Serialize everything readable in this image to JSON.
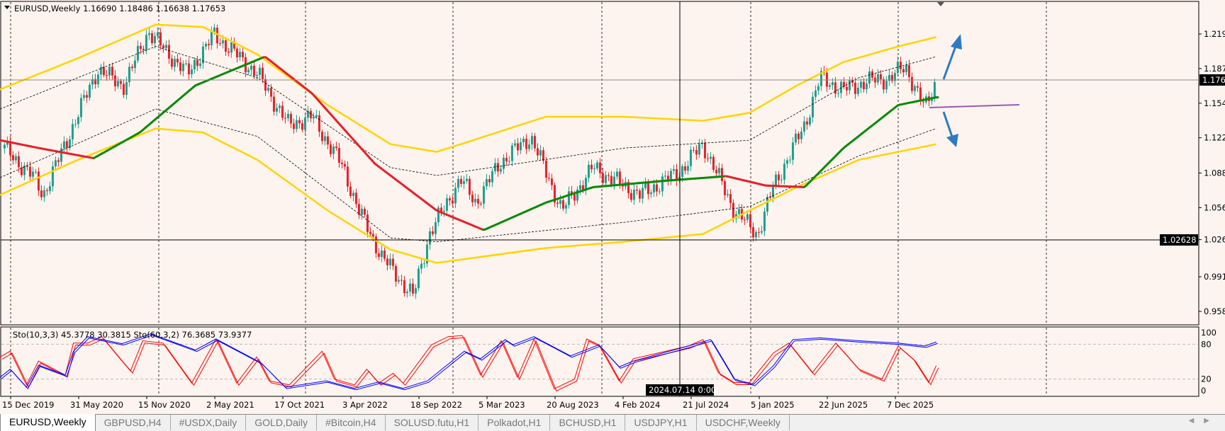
{
  "window": {
    "header": "EURUSD,Weekly  1.16690 1.18486 1.16638 1.17653",
    "symbol": "EURUSD",
    "timeframe": "Weekly"
  },
  "colors": {
    "background": "#fdf4ef",
    "bull_candle": "#1e9e8c",
    "bear_candle": "#e8202a",
    "ma_rising": "#0a8a0a",
    "ma_falling": "#e8202a",
    "outer_band": "#ffd400",
    "inner_band": "#000000",
    "stoch_fast": "#ff0000",
    "stoch_slow": "#0000ff",
    "arrow": "#2e7bc4",
    "level_line": "#9b59b6"
  },
  "price_axis": {
    "ticks": [
      "1.21950",
      "1.18700",
      "1.15450",
      "1.12200",
      "1.08885",
      "1.05635",
      "1.02628",
      "0.99135",
      "0.95885"
    ],
    "current_price": "1.17653",
    "crosshair_price": "1.02628"
  },
  "stoch_panel": {
    "label": "Sto(10,3,3) 45.3778 30.3815  Sto(60,3,2) 76.3685 73.9377",
    "ticks": [
      "100",
      "80",
      "20",
      "0"
    ]
  },
  "time_axis": {
    "ticks": [
      "15 Dec 2019",
      "31 May 2020",
      "15 Nov 2020",
      "2 May 2021",
      "17 Oct 2021",
      "3 Apr 2022",
      "18 Sep 2022",
      "5 Mar 2023",
      "20 Aug 2023",
      "4 Feb 2024",
      "21 Jul 2024",
      "5 Jan 2025",
      "22 Jun 2025",
      "7 Dec 2025"
    ],
    "crosshair_time": "2024.07.14 0:00"
  },
  "tabs": [
    {
      "label": "EURUSD,Weekly",
      "active": true
    },
    {
      "label": "GBPUSD,H4"
    },
    {
      "label": "#USDX,Daily"
    },
    {
      "label": "GOLD,Daily"
    },
    {
      "label": "#Bitcoin,H4"
    },
    {
      "label": "SOLUSD.futu,H1"
    },
    {
      "label": "Polkadot,H1"
    },
    {
      "label": "BCHUSD,H1"
    },
    {
      "label": "USDJPY,H1"
    },
    {
      "label": "USDCHF,Weekly"
    }
  ],
  "chart_data": {
    "type": "candlestick",
    "ylim": [
      0.95885,
      1.2195
    ],
    "price_path": [
      [
        "2019-11-30",
        1.112
      ],
      [
        "2020-02-14",
        1.083
      ],
      [
        "2020-03-04",
        1.068
      ],
      [
        "2020-05-10",
        1.127
      ],
      [
        "2020-07-16",
        1.186
      ],
      [
        "2020-09-21",
        1.171
      ],
      [
        "2020-11-18",
        1.222
      ],
      [
        "2021-02-23",
        1.182
      ],
      [
        "2021-05-01",
        1.219
      ],
      [
        "2021-08-15",
        1.182
      ],
      [
        "2021-10-31",
        1.134
      ],
      [
        "2021-12-28",
        1.142
      ],
      [
        "2022-03-15",
        1.094
      ],
      [
        "2022-04-22",
        1.054
      ],
      [
        "2022-06-19",
        1.01
      ],
      [
        "2022-09-04",
        0.973
      ],
      [
        "2022-10-13",
        1.031
      ],
      [
        "2022-12-29",
        1.083
      ],
      [
        "2023-02-06",
        1.061
      ],
      [
        "2023-04-05",
        1.098
      ],
      [
        "2023-06-21",
        1.123
      ],
      [
        "2023-09-06",
        1.054
      ],
      [
        "2023-11-22",
        1.094
      ],
      [
        "2024-03-17",
        1.068
      ],
      [
        "2024-06-22",
        1.09
      ],
      [
        "2024-08-19",
        1.116
      ],
      [
        "2024-11-04",
        1.054
      ],
      [
        "2025-01-01",
        1.031
      ],
      [
        "2025-02-09",
        1.076
      ],
      [
        "2025-04-27",
        1.134
      ],
      [
        "2025-06-04",
        1.178
      ],
      [
        "2025-08-01",
        1.167
      ],
      [
        "2025-09-28",
        1.175
      ],
      [
        "2025-11-24",
        1.178
      ],
      [
        "2026-01-01",
        1.189
      ],
      [
        "2026-02-18",
        1.149
      ],
      [
        "2026-03-18",
        1.1765
      ]
    ],
    "moving_average": [
      [
        "2019-11-19",
        1.1197
      ],
      [
        "2020-02-23",
        1.1123
      ],
      [
        "2020-07-07",
        1.1028
      ],
      [
        "2020-10-29",
        1.127
      ],
      [
        "2021-03-15",
        1.1711
      ],
      [
        "2021-09-03",
        1.1982
      ],
      [
        "2021-12-28",
        1.1637
      ],
      [
        "2022-06-01",
        1.0977
      ],
      [
        "2022-11-01",
        1.0536
      ],
      [
        "2023-02-25",
        1.0353
      ],
      [
        "2023-07-28",
        1.061
      ],
      [
        "2023-11-22",
        1.0756
      ],
      [
        "2024-05-15",
        1.0815
      ],
      [
        "2024-10-16",
        1.0859
      ],
      [
        "2025-01-21",
        1.0771
      ],
      [
        "2025-04-27",
        1.0756
      ],
      [
        "2025-08-01",
        1.1123
      ],
      [
        "2025-12-14",
        1.1527
      ],
      [
        "2026-03-18",
        1.16
      ]
    ],
    "upper_band": [
      [
        "2019-11-19",
        1.1674
      ],
      [
        "2020-05-29",
        1.1967
      ],
      [
        "2020-12-07",
        1.2283
      ],
      [
        "2021-04-03",
        1.2261
      ],
      [
        "2021-08-15",
        1.2004
      ],
      [
        "2022-02-05",
        1.1527
      ],
      [
        "2022-07-10",
        1.116
      ],
      [
        "2022-11-01",
        1.1087
      ],
      [
        "2023-07-28",
        1.1417
      ],
      [
        "2024-02-07",
        1.1417
      ],
      [
        "2024-08-19",
        1.138
      ],
      [
        "2024-12-12",
        1.1454
      ],
      [
        "2025-04-08",
        1.1711
      ],
      [
        "2025-08-01",
        1.1931
      ],
      [
        "2025-12-14",
        1.2078
      ],
      [
        "2026-03-18",
        1.2166
      ]
    ],
    "lower_band": [
      [
        "2019-11-19",
        1.0683
      ],
      [
        "2020-05-29",
        1.1013
      ],
      [
        "2020-12-07",
        1.1307
      ],
      [
        "2021-04-03",
        1.127
      ],
      [
        "2021-08-15",
        1.1013
      ],
      [
        "2022-02-05",
        1.0536
      ],
      [
        "2022-07-10",
        1.0169
      ],
      [
        "2022-11-01",
        1.0044
      ],
      [
        "2023-07-28",
        1.0184
      ],
      [
        "2024-02-07",
        1.0243
      ],
      [
        "2024-08-19",
        1.0316
      ],
      [
        "2024-12-12",
        1.0536
      ],
      [
        "2025-04-08",
        1.0756
      ],
      [
        "2025-09-08",
        1.1013
      ],
      [
        "2026-03-18",
        1.116
      ]
    ],
    "inner_upper_band": [
      [
        "2019-11-19",
        1.149
      ],
      [
        "2020-12-07",
        1.2078
      ],
      [
        "2021-08-15",
        1.1784
      ],
      [
        "2022-07-10",
        1.094
      ],
      [
        "2022-11-01",
        1.0866
      ],
      [
        "2024-02-07",
        1.1123
      ],
      [
        "2024-12-12",
        1.1197
      ],
      [
        "2025-09-08",
        1.1784
      ],
      [
        "2026-03-18",
        1.1982
      ]
    ],
    "inner_lower_band": [
      [
        "2019-11-19",
        1.0845
      ],
      [
        "2020-12-07",
        1.149
      ],
      [
        "2021-08-15",
        1.1233
      ],
      [
        "2022-07-10",
        1.0279
      ],
      [
        "2022-11-01",
        1.0243
      ],
      [
        "2024-02-07",
        1.0426
      ],
      [
        "2024-12-12",
        1.0573
      ],
      [
        "2025-09-08",
        1.105
      ],
      [
        "2026-03-18",
        1.1307
      ]
    ],
    "stoch_fast": [
      [
        "2019-11-19",
        58
      ],
      [
        "2019-12-14",
        68
      ],
      [
        "2020-01-23",
        10
      ],
      [
        "2020-02-22",
        51
      ],
      [
        "2020-04-28",
        27
      ],
      [
        "2020-05-18",
        82
      ],
      [
        "2020-06-22",
        82
      ],
      [
        "2020-07-27",
        93
      ],
      [
        "2020-09-15",
        51
      ],
      [
        "2020-10-06",
        34
      ],
      [
        "2020-11-05",
        86
      ],
      [
        "2020-12-25",
        82
      ],
      [
        "2021-03-06",
        13
      ],
      [
        "2021-05-05",
        89
      ],
      [
        "2021-06-25",
        13
      ],
      [
        "2021-08-13",
        58
      ],
      [
        "2021-09-13",
        17
      ],
      [
        "2021-11-02",
        10
      ],
      [
        "2022-01-22",
        68
      ],
      [
        "2022-02-21",
        20
      ],
      [
        "2022-04-12",
        10
      ],
      [
        "2022-05-12",
        37
      ],
      [
        "2022-06-11",
        13
      ],
      [
        "2022-07-16",
        30
      ],
      [
        "2022-08-10",
        13
      ],
      [
        "2022-10-19",
        79
      ],
      [
        "2022-11-29",
        93
      ],
      [
        "2023-01-03",
        95
      ],
      [
        "2023-02-17",
        27
      ],
      [
        "2023-04-09",
        86
      ],
      [
        "2023-05-19",
        23
      ],
      [
        "2023-06-29",
        89
      ],
      [
        "2023-08-18",
        3
      ],
      [
        "2023-10-07",
        20
      ],
      [
        "2023-11-06",
        89
      ],
      [
        "2023-12-06",
        79
      ],
      [
        "2024-01-25",
        17
      ],
      [
        "2024-02-29",
        55
      ],
      [
        "2024-07-14",
        77
      ],
      [
        "2024-08-19",
        88
      ],
      [
        "2024-09-26",
        31
      ],
      [
        "2024-11-04",
        14
      ],
      [
        "2024-12-12",
        14
      ],
      [
        "2025-02-09",
        65
      ],
      [
        "2025-03-19",
        82
      ],
      [
        "2025-05-16",
        31
      ],
      [
        "2025-07-13",
        82
      ],
      [
        "2025-09-08",
        37
      ],
      [
        "2025-11-04",
        20
      ],
      [
        "2025-12-14",
        77
      ],
      [
        "2026-01-21",
        54
      ],
      [
        "2026-02-27",
        14
      ],
      [
        "2026-03-18",
        43
      ]
    ],
    "stoch_slow": [
      [
        "2019-11-19",
        23
      ],
      [
        "2019-12-14",
        37
      ],
      [
        "2020-01-23",
        6
      ],
      [
        "2020-02-22",
        44
      ],
      [
        "2020-04-28",
        27
      ],
      [
        "2020-05-18",
        68
      ],
      [
        "2020-06-22",
        93
      ],
      [
        "2020-09-15",
        81
      ],
      [
        "2020-11-25",
        98
      ],
      [
        "2021-03-15",
        70
      ],
      [
        "2021-05-05",
        89
      ],
      [
        "2021-08-24",
        48
      ],
      [
        "2021-10-23",
        6
      ],
      [
        "2022-02-01",
        17
      ],
      [
        "2022-04-12",
        4
      ],
      [
        "2022-06-11",
        15
      ],
      [
        "2022-08-10",
        4
      ],
      [
        "2022-10-09",
        17
      ],
      [
        "2023-01-08",
        68
      ],
      [
        "2023-02-17",
        55
      ],
      [
        "2023-04-19",
        88
      ],
      [
        "2023-05-08",
        79
      ],
      [
        "2023-06-29",
        93
      ],
      [
        "2023-09-27",
        60
      ],
      [
        "2023-12-06",
        79
      ],
      [
        "2024-01-25",
        41
      ],
      [
        "2024-02-29",
        51
      ],
      [
        "2024-07-14",
        77
      ],
      [
        "2024-09-07",
        88
      ],
      [
        "2024-11-04",
        20
      ],
      [
        "2024-12-22",
        11
      ],
      [
        "2025-02-09",
        43
      ],
      [
        "2025-03-29",
        88
      ],
      [
        "2025-06-04",
        91
      ],
      [
        "2025-09-08",
        86
      ],
      [
        "2025-12-14",
        82
      ],
      [
        "2026-02-18",
        77
      ],
      [
        "2026-03-18",
        84
      ]
    ]
  }
}
